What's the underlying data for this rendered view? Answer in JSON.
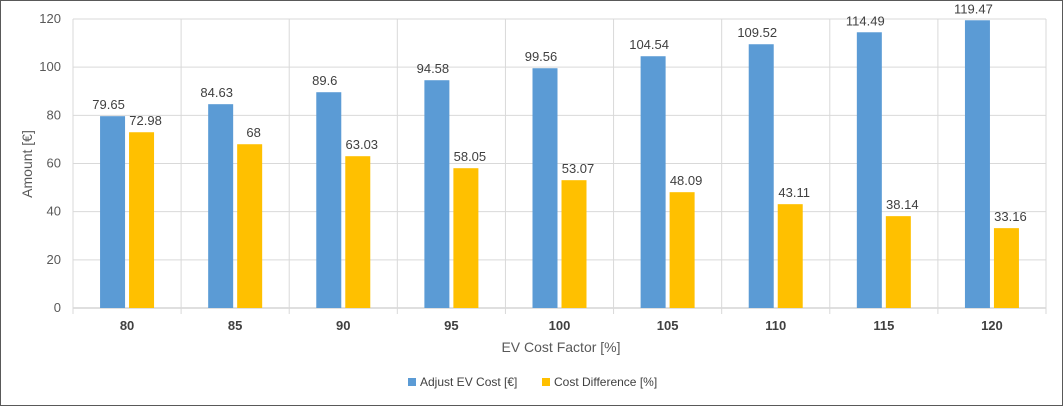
{
  "chart_data": {
    "type": "bar",
    "categories": [
      "80",
      "85",
      "90",
      "95",
      "100",
      "105",
      "110",
      "115",
      "120"
    ],
    "series": [
      {
        "name": "Adjust EV Cost [€]",
        "color": "#5b9bd5",
        "values": [
          79.65,
          84.63,
          89.6,
          94.58,
          99.56,
          104.54,
          109.52,
          114.49,
          119.47
        ],
        "labels": [
          "79.65",
          "84.63",
          "89.6",
          "94.58",
          "99.56",
          "104.54",
          "109.52",
          "114.49",
          "119.47"
        ]
      },
      {
        "name": "Cost Difference [%]",
        "color": "#ffc000",
        "values": [
          72.98,
          68,
          63.03,
          58.05,
          53.07,
          48.09,
          43.11,
          38.14,
          33.16
        ],
        "labels": [
          "72.98",
          "68",
          "63.03",
          "58.05",
          "53.07",
          "48.09",
          "43.11",
          "38.14",
          "33.16"
        ]
      }
    ],
    "xlabel": "EV Cost Factor [%]",
    "ylabel": "Amount [€]",
    "ylim": [
      0,
      120
    ],
    "yticks": [
      "0",
      "20",
      "40",
      "60",
      "80",
      "100",
      "120"
    ],
    "grid": true,
    "legend_position": "bottom"
  }
}
